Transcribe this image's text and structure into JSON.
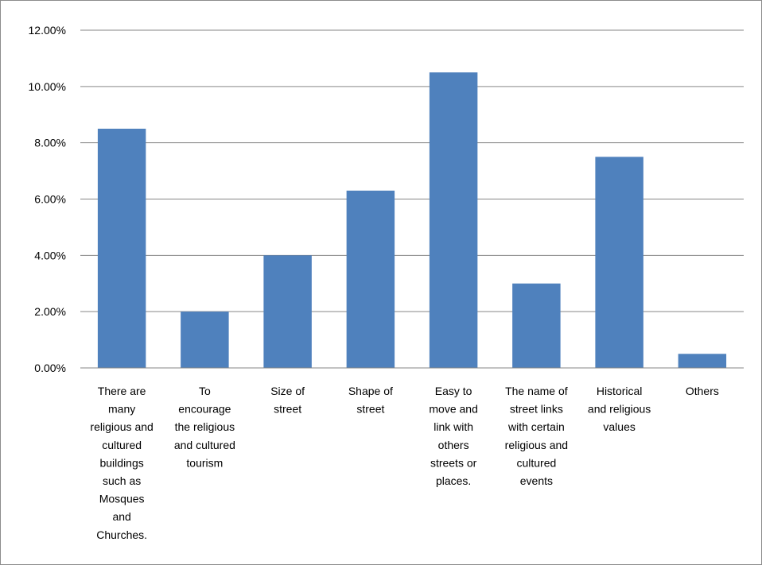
{
  "chart_data": {
    "type": "bar",
    "title": "",
    "xlabel": "",
    "ylabel": "",
    "ylim": [
      0,
      12
    ],
    "y_tick_values": [
      0,
      2,
      4,
      6,
      8,
      10,
      12
    ],
    "y_tick_labels": [
      "0.00%",
      "2.00%",
      "4.00%",
      "6.00%",
      "8.00%",
      "10.00%",
      "12.00%"
    ],
    "grid": true,
    "legend": "none",
    "bar_color": "#4F81BD",
    "categories": [
      [
        "There are",
        "many",
        "religious and",
        "cultured",
        "buildings",
        "such as",
        "Mosques",
        "and",
        "Churches."
      ],
      [
        "To",
        "encourage",
        "the religious",
        "and cultured",
        "tourism"
      ],
      [
        "Size of",
        "street"
      ],
      [
        "Shape of",
        "street"
      ],
      [
        "Easy to",
        "move and",
        "link with",
        "others",
        "streets or",
        "places."
      ],
      [
        "The name of",
        "street links",
        "with certain",
        "religious and",
        "cultured",
        "events"
      ],
      [
        "Historical",
        "and religious",
        "values"
      ],
      [
        "Others"
      ]
    ],
    "values": [
      8.5,
      2.0,
      4.0,
      6.3,
      10.5,
      3.0,
      7.5,
      0.5
    ]
  }
}
